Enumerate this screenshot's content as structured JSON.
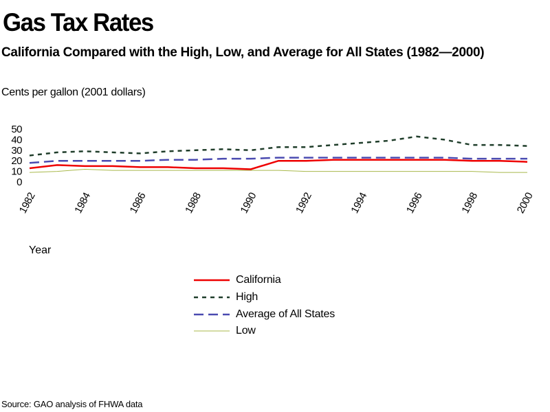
{
  "header": {
    "title": "Gas Tax Rates",
    "subtitle": "California Compared with the High, Low, and Average for All States (1982—2000)"
  },
  "source": "Source: GAO analysis of FHWA data",
  "chart_data": {
    "type": "line",
    "title": "Gas Tax Rates",
    "subtitle": "California Compared with the High, Low, and Average for All States (1982—2000)",
    "ylabel": "Cents per gallon (2001 dollars)",
    "xlabel": "Year",
    "ylim": [
      0,
      50
    ],
    "yticks": [
      0,
      10,
      20,
      30,
      40,
      50
    ],
    "ytick_labels": [
      "0",
      "10",
      "20",
      "30",
      "40",
      "50"
    ],
    "xlim": [
      1982,
      2000
    ],
    "xtick_labels": [
      "1982",
      "1984",
      "1986",
      "1988",
      "1990",
      "1992",
      "1994",
      "1996",
      "1998",
      "2000"
    ],
    "grid": false,
    "legend_position": "bottom-center",
    "x": [
      1982,
      1983,
      1984,
      1985,
      1986,
      1987,
      1988,
      1989,
      1990,
      1991,
      1992,
      1993,
      1994,
      1995,
      1996,
      1997,
      1998,
      1999,
      2000
    ],
    "series": [
      {
        "name": "California",
        "color": "#ee0000",
        "style": "solid",
        "width": 2.5,
        "values": [
          13,
          16,
          15,
          15,
          14,
          14,
          13,
          13,
          12,
          20,
          20,
          21,
          21,
          21,
          21,
          21,
          20,
          20,
          19
        ]
      },
      {
        "name": "High",
        "color": "#1f3d2a",
        "style": "dotted",
        "width": 2.5,
        "values": [
          25,
          28,
          29,
          28,
          27,
          29,
          30,
          31,
          30,
          33,
          33,
          35,
          37,
          39,
          43,
          40,
          35,
          35,
          34
        ]
      },
      {
        "name": "Average of All States",
        "color": "#4a4ab0",
        "style": "dashed",
        "width": 2.5,
        "values": [
          18,
          20,
          20,
          20,
          20,
          21,
          21,
          22,
          22,
          23,
          23,
          23,
          23,
          23,
          23,
          23,
          22,
          22,
          22
        ]
      },
      {
        "name": "Low",
        "color": "#a8b84a",
        "style": "solid",
        "width": 1,
        "values": [
          9,
          10,
          12,
          11,
          11,
          11,
          11,
          11,
          11,
          11,
          10,
          10,
          10,
          10,
          10,
          10,
          10,
          9,
          9
        ]
      }
    ]
  }
}
